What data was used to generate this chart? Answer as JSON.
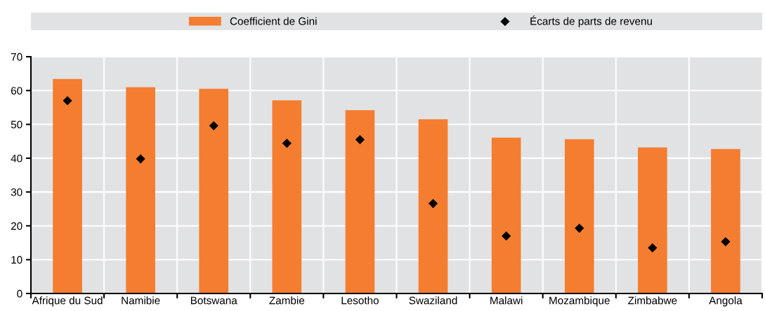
{
  "chart_data": {
    "type": "bar",
    "categories": [
      "Afrique du Sud",
      "Namibie",
      "Botswana",
      "Zambie",
      "Lesotho",
      "Swaziland",
      "Malawi",
      "Mozambique",
      "Zimbabwe",
      "Angola"
    ],
    "series": [
      {
        "name": "Coefficient de Gini",
        "color": "#f47d30",
        "values": [
          63.4,
          61.0,
          60.5,
          57.1,
          54.2,
          51.5,
          46.1,
          45.6,
          43.2,
          42.7
        ]
      },
      {
        "name": "Écarts de parts de revenu",
        "type": "scatter",
        "color": "#000000",
        "marker": "diamond",
        "values": [
          57.0,
          39.8,
          49.6,
          44.4,
          45.5,
          26.6,
          17.0,
          19.3,
          13.5,
          15.3
        ]
      }
    ],
    "ylim": [
      0,
      70
    ],
    "yticks": [
      0,
      10,
      20,
      30,
      40,
      50,
      60,
      70
    ],
    "grid": true,
    "legend": "top"
  }
}
